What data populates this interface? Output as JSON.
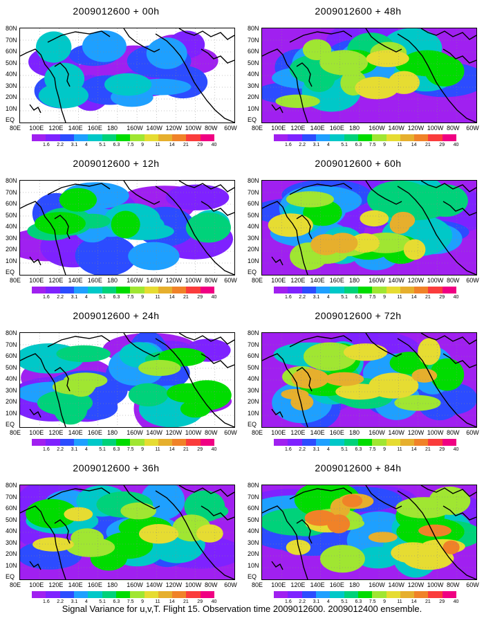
{
  "caption": "Signal Variance for u,v,T. Flight 15. Observation time 2009012600. 2009012400 ensemble.",
  "lat_labels": [
    "80N",
    "70N",
    "60N",
    "50N",
    "40N",
    "30N",
    "20N",
    "10N",
    "EQ"
  ],
  "lon_labels": [
    "80E",
    "100E",
    "120E",
    "140E",
    "160E",
    "180",
    "160W",
    "140W",
    "120W",
    "100W",
    "80W",
    "60W"
  ],
  "colorbar": {
    "labels": [
      "1.6",
      "2.2",
      "3.1",
      "4",
      "5.1",
      "6.3",
      "7.5",
      "9",
      "11",
      "14",
      "21",
      "29",
      "40"
    ],
    "colors": [
      "#a020f0",
      "#7e22ff",
      "#2c4cff",
      "#1ea0ff",
      "#00c8c8",
      "#00d27a",
      "#00dc00",
      "#a0e632",
      "#e6dc32",
      "#e6af2d",
      "#f08228",
      "#fa3c3c",
      "#f00082"
    ]
  },
  "panels": [
    {
      "title": "2009012600 + 00h",
      "intensity": 0.25
    },
    {
      "title": "2009012600 + 48h",
      "intensity": 0.7
    },
    {
      "title": "2009012600 + 12h",
      "intensity": 0.4
    },
    {
      "title": "2009012600 + 60h",
      "intensity": 0.75
    },
    {
      "title": "2009012600 + 24h",
      "intensity": 0.55
    },
    {
      "title": "2009012600 + 72h",
      "intensity": 0.82
    },
    {
      "title": "2009012600 + 36h",
      "intensity": 0.62
    },
    {
      "title": "2009012600 + 84h",
      "intensity": 0.9
    }
  ]
}
